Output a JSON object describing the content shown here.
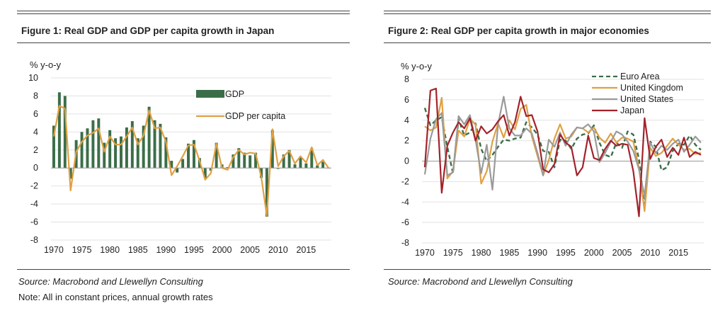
{
  "figure1": {
    "title": "Figure 1: Real GDP and GDP per capita growth in Japan",
    "source": "Source: Macrobond and Llewellyn Consulting",
    "note": "Note: All in constant prices, annual growth rates"
  },
  "figure2": {
    "title": "Figure 2: Real GDP per capita growth in major economies",
    "source": "Source: Macrobond and Llewellyn Consulting"
  },
  "chart_data": [
    {
      "type": "bar",
      "title": "Figure 1: Real GDP and GDP per capita growth in Japan",
      "ylabel": "% y-o-y",
      "xlabel": "",
      "ylim": [
        -8,
        10
      ],
      "yticks": [
        "-8",
        "-6",
        "-4",
        "-2",
        "0",
        "2",
        "4",
        "6",
        "8",
        "10"
      ],
      "xticks": [
        "1970",
        "1975",
        "1980",
        "1985",
        "1990",
        "1995",
        "2000",
        "2005",
        "2010",
        "2015"
      ],
      "legend": "right",
      "colors": {
        "bar": "#3b6e48",
        "line": "#e0a043"
      },
      "x": [
        1970,
        1971,
        1972,
        1973,
        1974,
        1975,
        1976,
        1977,
        1978,
        1979,
        1980,
        1981,
        1982,
        1983,
        1984,
        1985,
        1986,
        1987,
        1988,
        1989,
        1990,
        1991,
        1992,
        1993,
        1994,
        1995,
        1996,
        1997,
        1998,
        1999,
        2000,
        2001,
        2002,
        2003,
        2004,
        2005,
        2006,
        2007,
        2008,
        2009,
        2010,
        2011,
        2012,
        2013,
        2014,
        2015,
        2016,
        2017,
        2018,
        2019
      ],
      "series": [
        {
          "name": "GDP",
          "kind": "bar",
          "values": [
            4.7,
            8.4,
            8.0,
            -1.2,
            3.1,
            4.0,
            4.4,
            5.3,
            5.5,
            2.8,
            4.2,
            3.3,
            3.5,
            4.5,
            5.2,
            3.3,
            4.7,
            6.8,
            5.3,
            4.9,
            3.4,
            0.8,
            -0.5,
            1.0,
            2.7,
            3.1,
            1.1,
            -1.1,
            -0.3,
            2.8,
            0.4,
            0.1,
            1.5,
            2.2,
            1.7,
            1.4,
            1.7,
            -1.1,
            -5.4,
            4.2,
            -0.1,
            1.5,
            2.0,
            0.4,
            1.2,
            0.5,
            2.2,
            0.3,
            0.7,
            0.0
          ]
        },
        {
          "name": "GDP per capita",
          "kind": "line",
          "values": [
            3.5,
            6.9,
            6.6,
            -2.5,
            1.8,
            2.9,
            3.6,
            3.9,
            4.4,
            1.8,
            3.5,
            2.6,
            2.6,
            3.5,
            4.5,
            2.6,
            3.6,
            6.4,
            4.4,
            4.5,
            2.9,
            -0.8,
            0.2,
            1.3,
            2.5,
            2.6,
            0.8,
            -1.3,
            -0.6,
            2.7,
            0.0,
            -0.2,
            1.2,
            2.0,
            1.5,
            1.7,
            1.6,
            -1.0,
            -5.3,
            4.3,
            0.2,
            1.3,
            1.9,
            0.5,
            1.3,
            0.6,
            2.3,
            0.3,
            0.9,
            0.0
          ]
        }
      ]
    },
    {
      "type": "line",
      "title": "Figure 2: Real GDP per capita growth in major economies",
      "ylabel": "% y-o-y",
      "xlabel": "",
      "ylim": [
        -8,
        8
      ],
      "yticks": [
        "-8",
        "-6",
        "-4",
        "-2",
        "0",
        "2",
        "4",
        "6",
        "8"
      ],
      "xticks": [
        "1970",
        "1975",
        "1980",
        "1985",
        "1990",
        "1995",
        "2000",
        "2005",
        "2010",
        "2015"
      ],
      "legend": "top-left",
      "x": [
        1970,
        1971,
        1972,
        1973,
        1974,
        1975,
        1976,
        1977,
        1978,
        1979,
        1980,
        1981,
        1982,
        1983,
        1984,
        1985,
        1986,
        1987,
        1988,
        1989,
        1990,
        1991,
        1992,
        1993,
        1994,
        1995,
        1996,
        1997,
        1998,
        1999,
        2000,
        2001,
        2002,
        2003,
        2004,
        2005,
        2006,
        2007,
        2008,
        2009,
        2010,
        2011,
        2012,
        2013,
        2014,
        2015,
        2016,
        2017,
        2018,
        2019
      ],
      "series": [
        {
          "name": "Euro Area",
          "color": "#3b6e48",
          "dashed": true,
          "values": [
            5.2,
            3.5,
            4.0,
            4.3,
            1.4,
            -1.2,
            4.1,
            2.5,
            2.8,
            3.7,
            1.2,
            0.0,
            0.6,
            1.4,
            2.1,
            2.0,
            2.2,
            2.3,
            3.8,
            3.3,
            2.6,
            1.0,
            0.9,
            -0.6,
            2.1,
            2.0,
            1.2,
            2.2,
            2.6,
            2.7,
            3.5,
            1.8,
            0.6,
            0.4,
            1.8,
            1.3,
            2.9,
            2.6,
            0.2,
            -4.6,
            1.9,
            1.4,
            -0.9,
            -0.6,
            1.0,
            1.7,
            1.6,
            2.5,
            1.6,
            1.1
          ]
        },
        {
          "name": "United Kingdom",
          "color": "#e0a043",
          "dashed": false,
          "values": [
            3.4,
            3.0,
            3.3,
            6.2,
            -1.7,
            -1.0,
            3.0,
            2.4,
            4.1,
            3.6,
            -2.2,
            -1.0,
            1.9,
            3.7,
            2.3,
            4.0,
            3.1,
            5.1,
            5.5,
            2.4,
            0.5,
            -1.4,
            0.1,
            2.2,
            3.6,
            2.2,
            2.4,
            3.3,
            3.2,
            2.8,
            3.3,
            2.3,
            1.8,
            2.7,
            1.8,
            2.3,
            2.2,
            1.9,
            -0.7,
            -4.9,
            1.3,
            0.5,
            0.8,
            1.5,
            2.2,
            1.6,
            1.1,
            1.2,
            0.7,
            0.8
          ]
        },
        {
          "name": "United States",
          "color": "#9a9a9a",
          "dashed": false,
          "values": [
            -1.3,
            2.2,
            4.1,
            4.7,
            -1.4,
            -1.1,
            4.4,
            3.6,
            4.5,
            2.1,
            -1.2,
            1.6,
            -2.8,
            3.6,
            6.3,
            3.2,
            2.5,
            2.5,
            3.2,
            2.7,
            0.8,
            -1.4,
            2.1,
            1.4,
            2.8,
            1.5,
            2.6,
            3.3,
            3.2,
            3.6,
            2.9,
            -0.1,
            0.8,
            1.9,
            2.9,
            2.6,
            1.9,
            1.0,
            -0.8,
            -3.4,
            1.8,
            0.8,
            1.5,
            1.1,
            1.7,
            2.1,
            0.9,
            1.6,
            2.4,
            1.8
          ]
        },
        {
          "name": "Japan",
          "color": "#a3222b",
          "dashed": false,
          "values": [
            -0.6,
            6.9,
            7.1,
            -3.1,
            1.5,
            2.8,
            3.8,
            3.2,
            4.2,
            2.0,
            3.4,
            2.7,
            3.1,
            3.9,
            4.5,
            2.5,
            3.8,
            6.3,
            4.4,
            4.5,
            2.9,
            -0.8,
            -1.1,
            -0.3,
            2.6,
            1.8,
            1.4,
            -1.4,
            -0.6,
            2.5,
            0.3,
            0.1,
            1.2,
            2.0,
            1.5,
            1.7,
            1.6,
            -1.0,
            -5.4,
            4.2,
            0.2,
            1.4,
            2.1,
            0.4,
            1.3,
            0.6,
            2.3,
            0.4,
            0.9,
            0.6
          ]
        }
      ]
    }
  ]
}
